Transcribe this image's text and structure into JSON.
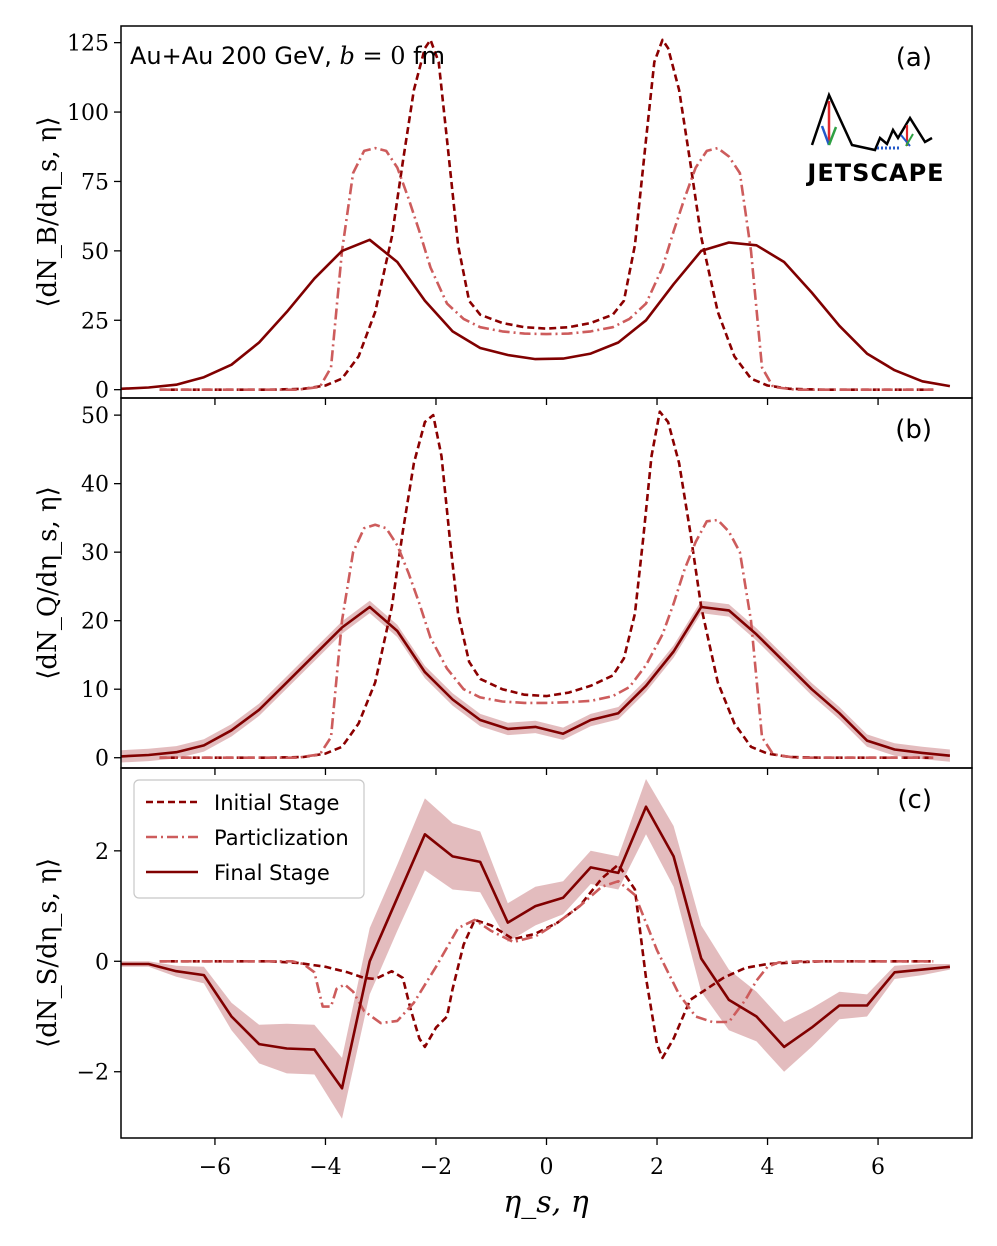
{
  "chart_data": [
    {
      "type": "line",
      "panel_label": "(a)",
      "title": "Au+Au 200 GeV, b = 0 fm",
      "xlabel": "η_s, η",
      "ylabel": "⟨dN_B/dη_s, η⟩",
      "xlim": [
        -7.7,
        7.7
      ],
      "ylim": [
        -3,
        131
      ],
      "yticks": [
        0,
        25,
        50,
        75,
        100,
        125
      ],
      "xticks": [
        -6,
        -4,
        -2,
        0,
        2,
        4,
        6
      ],
      "series": [
        {
          "name": "Initial Stage",
          "style": "dashed",
          "color": "#8b0000",
          "x": [
            -7.0,
            -5.0,
            -4.4,
            -4.0,
            -3.7,
            -3.4,
            -3.1,
            -2.8,
            -2.6,
            -2.4,
            -2.2,
            -2.1,
            -1.95,
            -1.8,
            -1.6,
            -1.4,
            -1.2,
            -0.8,
            -0.4,
            0.0,
            0.4,
            0.8,
            1.2,
            1.4,
            1.6,
            1.8,
            1.95,
            2.1,
            2.2,
            2.4,
            2.6,
            2.8,
            3.1,
            3.4,
            3.7,
            4.0,
            4.4,
            5.0,
            7.0
          ],
          "y": [
            0,
            0,
            0.3,
            1.5,
            4,
            12,
            28,
            55,
            82,
            108,
            123,
            126,
            118,
            90,
            52,
            32,
            27,
            24,
            22.5,
            22,
            22.5,
            24,
            27,
            32,
            52,
            90,
            118,
            126,
            123,
            108,
            82,
            55,
            28,
            12,
            4,
            1.5,
            0.3,
            0,
            0
          ]
        },
        {
          "name": "Particlization",
          "style": "dashdot",
          "color": "#cd5c5c",
          "x": [
            -7.0,
            -4.5,
            -4.1,
            -3.9,
            -3.7,
            -3.5,
            -3.3,
            -3.1,
            -2.9,
            -2.7,
            -2.5,
            -2.3,
            -2.1,
            -1.8,
            -1.5,
            -1.2,
            -0.8,
            -0.4,
            0.0,
            0.4,
            0.8,
            1.2,
            1.5,
            1.8,
            2.1,
            2.3,
            2.5,
            2.7,
            2.9,
            3.1,
            3.3,
            3.5,
            3.7,
            3.9,
            4.1,
            4.5,
            7.0
          ],
          "y": [
            0,
            0,
            1,
            8,
            50,
            78,
            86,
            87,
            86,
            80,
            69,
            57,
            44,
            31,
            25.5,
            22.5,
            21,
            20.2,
            20,
            20.2,
            21,
            22.5,
            25.5,
            31,
            44,
            57,
            69,
            80,
            86,
            87,
            84,
            78,
            50,
            8,
            1,
            0,
            0
          ]
        },
        {
          "name": "Final Stage",
          "style": "solid",
          "color": "#800000",
          "x": [
            -7.7,
            -7.2,
            -6.7,
            -6.2,
            -5.7,
            -5.2,
            -4.7,
            -4.2,
            -3.7,
            -3.2,
            -2.7,
            -2.2,
            -1.7,
            -1.2,
            -0.7,
            -0.2,
            0.3,
            0.8,
            1.3,
            1.8,
            2.3,
            2.8,
            3.3,
            3.8,
            4.3,
            4.8,
            5.3,
            5.8,
            6.3,
            6.8,
            7.3
          ],
          "y": [
            0.3,
            0.8,
            1.8,
            4.5,
            9,
            17,
            28,
            40,
            50,
            54,
            46,
            32,
            21,
            15,
            12.5,
            11,
            11.2,
            13,
            17,
            25,
            38,
            50,
            53,
            52,
            46,
            35,
            23,
            13,
            7,
            3,
            1.3
          ]
        }
      ]
    },
    {
      "type": "line",
      "panel_label": "(b)",
      "ylabel": "⟨dN_Q/dη_s, η⟩",
      "xlim": [
        -7.7,
        7.7
      ],
      "ylim": [
        -1.5,
        52.5
      ],
      "yticks": [
        0,
        10,
        20,
        30,
        40,
        50
      ],
      "series": [
        {
          "name": "Initial Stage",
          "style": "dashed",
          "color": "#8b0000",
          "x": [
            -7.0,
            -5.0,
            -4.4,
            -4.0,
            -3.7,
            -3.4,
            -3.1,
            -2.8,
            -2.6,
            -2.4,
            -2.2,
            -2.05,
            -1.9,
            -1.75,
            -1.6,
            -1.4,
            -1.2,
            -0.8,
            -0.4,
            0.0,
            0.4,
            0.8,
            1.2,
            1.4,
            1.6,
            1.75,
            1.9,
            2.05,
            2.2,
            2.4,
            2.6,
            2.8,
            3.1,
            3.4,
            3.7,
            4.0,
            4.4,
            5.0,
            7.0
          ],
          "y": [
            0,
            0,
            0.1,
            0.6,
            1.6,
            5,
            11,
            22,
            33,
            43,
            49,
            50,
            44,
            32,
            21,
            14,
            11.5,
            10,
            9.2,
            9,
            9.5,
            10.5,
            12,
            14.5,
            21,
            32,
            44,
            50.5,
            49,
            43,
            33,
            22,
            11,
            5,
            1.6,
            0.6,
            0.1,
            0,
            0
          ]
        },
        {
          "name": "Particlization",
          "style": "dashdot",
          "color": "#cd5c5c",
          "x": [
            -7.0,
            -4.5,
            -4.1,
            -3.9,
            -3.7,
            -3.5,
            -3.3,
            -3.1,
            -2.9,
            -2.7,
            -2.5,
            -2.3,
            -2.1,
            -1.8,
            -1.5,
            -1.2,
            -0.8,
            -0.4,
            0.0,
            0.4,
            0.8,
            1.2,
            1.5,
            1.8,
            2.1,
            2.3,
            2.5,
            2.7,
            2.9,
            3.1,
            3.3,
            3.5,
            3.7,
            3.9,
            4.1,
            4.5,
            7.0
          ],
          "y": [
            0,
            0,
            0.5,
            3,
            20,
            30,
            33.5,
            34,
            33.5,
            31,
            27,
            22.5,
            17.5,
            13,
            10,
            8.8,
            8.2,
            8,
            8,
            8.1,
            8.3,
            9,
            10.3,
            13.5,
            18,
            22.5,
            27.5,
            31.5,
            34.5,
            34.7,
            33,
            30,
            20,
            3,
            0.5,
            0,
            0
          ]
        },
        {
          "name": "Final Stage",
          "style": "solid",
          "color": "#800000",
          "x": [
            -7.7,
            -7.2,
            -6.7,
            -6.2,
            -5.7,
            -5.2,
            -4.7,
            -4.2,
            -3.7,
            -3.2,
            -2.7,
            -2.2,
            -1.7,
            -1.2,
            -0.7,
            -0.2,
            0.3,
            0.8,
            1.3,
            1.8,
            2.3,
            2.8,
            3.3,
            3.8,
            4.3,
            4.8,
            5.3,
            5.8,
            6.3,
            6.8,
            7.3
          ],
          "y": [
            0.2,
            0.4,
            0.8,
            1.8,
            4,
            7,
            11,
            15,
            19,
            22,
            18.5,
            12.5,
            8.5,
            5.5,
            4.2,
            4.5,
            3.5,
            5.5,
            6.5,
            10.5,
            15.5,
            22,
            21.5,
            18,
            14,
            10,
            6.5,
            2.5,
            1.2,
            0.7,
            0.3
          ],
          "band": 0.9
        }
      ]
    },
    {
      "type": "line",
      "panel_label": "(c)",
      "ylabel": "⟨dN_S/dη_s, η⟩",
      "xlim": [
        -7.7,
        7.7
      ],
      "ylim": [
        -3.2,
        3.5
      ],
      "yticks": [
        -2,
        0,
        2
      ],
      "legend": {
        "placement": "upper-left",
        "entries": [
          "Initial Stage",
          "Particlization",
          "Final Stage"
        ]
      },
      "series": [
        {
          "name": "Initial Stage",
          "style": "dashed",
          "color": "#8b0000",
          "x": [
            -7.0,
            -5.0,
            -4.5,
            -4.0,
            -3.6,
            -3.3,
            -3.1,
            -2.95,
            -2.8,
            -2.6,
            -2.45,
            -2.3,
            -2.2,
            -2.0,
            -1.8,
            -1.7,
            -1.5,
            -1.3,
            -1.0,
            -0.6,
            -0.2,
            0.2,
            0.6,
            1.0,
            1.3,
            1.6,
            1.8,
            2.0,
            2.1,
            2.3,
            2.6,
            2.9,
            3.2,
            3.6,
            4.0,
            4.5,
            5.0,
            7.0
          ],
          "y": [
            0,
            0,
            -0.03,
            -0.1,
            -0.2,
            -0.3,
            -0.32,
            -0.25,
            -0.18,
            -0.3,
            -0.9,
            -1.4,
            -1.55,
            -1.2,
            -1.0,
            -0.5,
            0.3,
            0.75,
            0.65,
            0.4,
            0.5,
            0.7,
            1.0,
            1.5,
            1.75,
            1.3,
            -0.3,
            -1.5,
            -1.75,
            -1.4,
            -0.7,
            -0.5,
            -0.3,
            -0.12,
            -0.05,
            -0.02,
            0,
            0
          ]
        },
        {
          "name": "Particlization",
          "style": "dashdot",
          "color": "#cd5c5c",
          "x": [
            -7.0,
            -4.6,
            -4.4,
            -4.2,
            -4.05,
            -3.9,
            -3.8,
            -3.65,
            -3.5,
            -3.3,
            -3.0,
            -2.7,
            -2.4,
            -2.0,
            -1.6,
            -1.3,
            -1.0,
            -0.6,
            -0.2,
            0.2,
            0.6,
            1.0,
            1.3,
            1.6,
            2.0,
            2.4,
            2.7,
            3.0,
            3.3,
            3.6,
            3.8,
            4.0,
            4.2,
            4.6,
            7.0
          ],
          "y": [
            0,
            0,
            -0.05,
            -0.2,
            -0.82,
            -0.82,
            -0.5,
            -0.42,
            -0.55,
            -0.9,
            -1.12,
            -1.08,
            -0.75,
            -0.1,
            0.6,
            0.75,
            0.55,
            0.35,
            0.45,
            0.7,
            1.0,
            1.35,
            1.45,
            1.2,
            0.2,
            -0.6,
            -1.0,
            -1.1,
            -1.1,
            -0.7,
            -0.35,
            -0.1,
            -0.02,
            0,
            0
          ]
        },
        {
          "name": "Final Stage",
          "style": "solid",
          "color": "#800000",
          "x": [
            -7.7,
            -7.2,
            -6.7,
            -6.2,
            -5.7,
            -5.2,
            -4.7,
            -4.2,
            -3.7,
            -3.2,
            -2.7,
            -2.2,
            -1.7,
            -1.2,
            -0.7,
            -0.2,
            0.3,
            0.8,
            1.3,
            1.8,
            2.3,
            2.8,
            3.3,
            3.8,
            4.3,
            4.8,
            5.3,
            5.8,
            6.3,
            6.8,
            7.3
          ],
          "y": [
            -0.05,
            -0.05,
            -0.18,
            -0.25,
            -1.0,
            -1.5,
            -1.58,
            -1.6,
            -2.3,
            0.0,
            1.15,
            2.3,
            1.9,
            1.8,
            0.7,
            1.0,
            1.15,
            1.7,
            1.6,
            2.8,
            1.9,
            0.05,
            -0.7,
            -1.0,
            -1.55,
            -1.2,
            -0.8,
            -0.8,
            -0.2,
            -0.15,
            -0.1
          ],
          "band": [
            0.05,
            0.05,
            0.1,
            0.15,
            0.25,
            0.35,
            0.45,
            0.45,
            0.55,
            0.6,
            0.6,
            0.65,
            0.6,
            0.55,
            0.35,
            0.35,
            0.3,
            0.3,
            0.3,
            0.5,
            0.55,
            0.6,
            0.55,
            0.45,
            0.45,
            0.35,
            0.25,
            0.2,
            0.12,
            0.1,
            0.05
          ]
        }
      ]
    }
  ],
  "figure": {
    "title_text": "Au+Au 200 GeV, ",
    "title_b": "b",
    "title_eq": " = 0",
    "title_unit": " fm",
    "xlabel": "η_s, η",
    "logo_text": "JETSCAPE",
    "legend_labels": [
      "Initial Stage",
      "Particlization",
      "Final Stage"
    ]
  }
}
